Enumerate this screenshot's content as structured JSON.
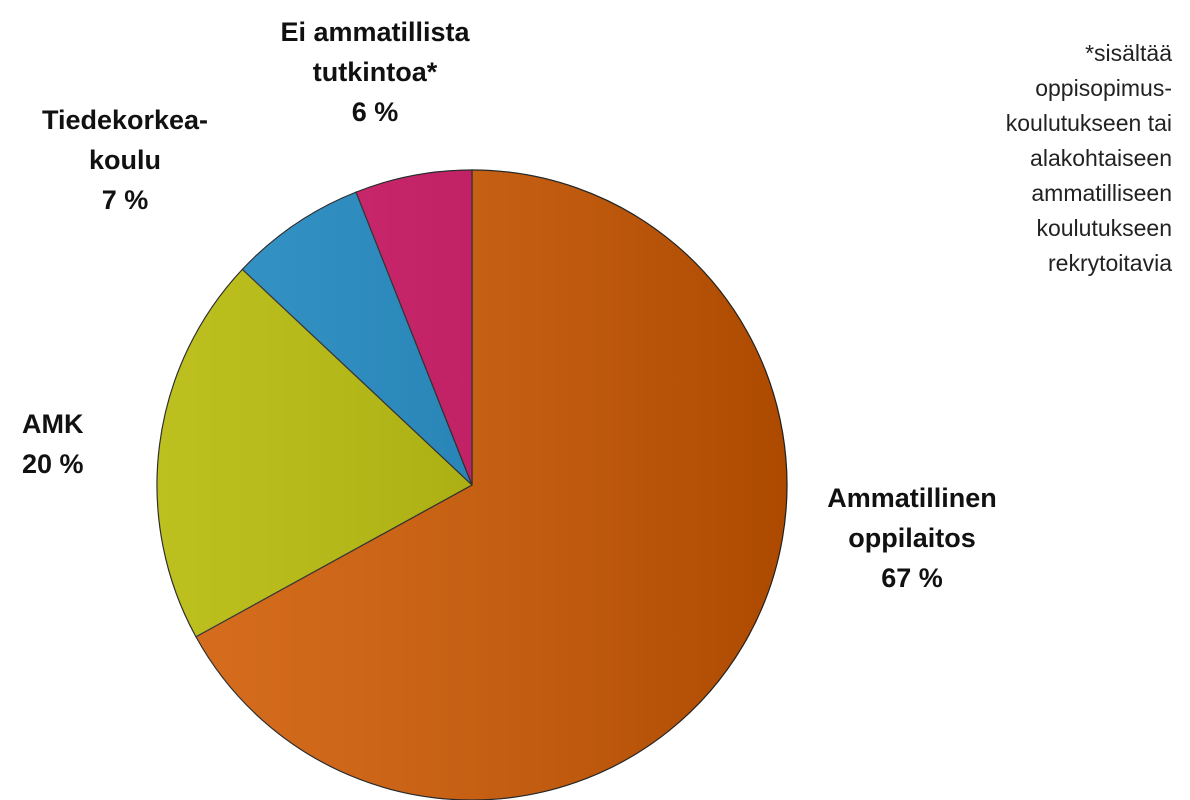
{
  "chart_data": {
    "type": "pie",
    "categories": [
      "Ammatillinen\noppilaitos",
      "AMK",
      "Tiedekorkea-\nkoulu",
      "Ei ammatillista\ntutkintoa*"
    ],
    "values": [
      67,
      20,
      7,
      6
    ],
    "value_labels": [
      "67 %",
      "20 %",
      "7 %",
      "6 %"
    ],
    "colors": [
      "#d25a00",
      "#b4b800",
      "#1a86c0",
      "#cc1060"
    ],
    "annotation": "*sisältää\noppisopimus-\nkoulutukseen tai\nalakohtaiseen\nammatilliseen\nkoulutukseen\nrekrytoitavia"
  }
}
